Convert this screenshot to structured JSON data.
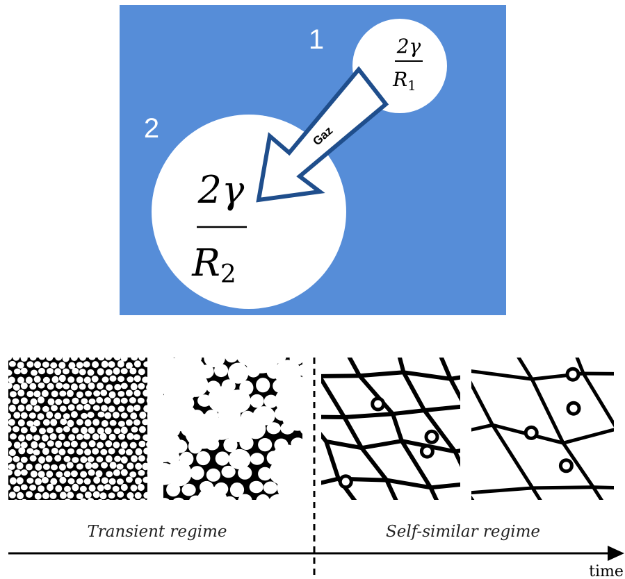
{
  "diagram": {
    "colors": {
      "panel_blue": "#568dd8",
      "bubble_white": "#ffffff",
      "arrow_outline": "#1f4e8c",
      "ink": "#000000"
    },
    "region_labels": [
      "1",
      "2"
    ],
    "bubble_small": {
      "numerator": "2γ",
      "denominator": "R",
      "subscript": "1"
    },
    "bubble_large": {
      "numerator": "2γ",
      "denominator": "R",
      "subscript": "2"
    },
    "arrow_label": "Gaz"
  },
  "timeline": {
    "transient_label": "Transient regime",
    "self_similar_label": "Self-similar regime",
    "axis_label": "time",
    "panels": [
      {
        "name": "foam-snapshot-1"
      },
      {
        "name": "foam-snapshot-2"
      },
      {
        "name": "foam-snapshot-3"
      },
      {
        "name": "foam-snapshot-4"
      }
    ]
  }
}
